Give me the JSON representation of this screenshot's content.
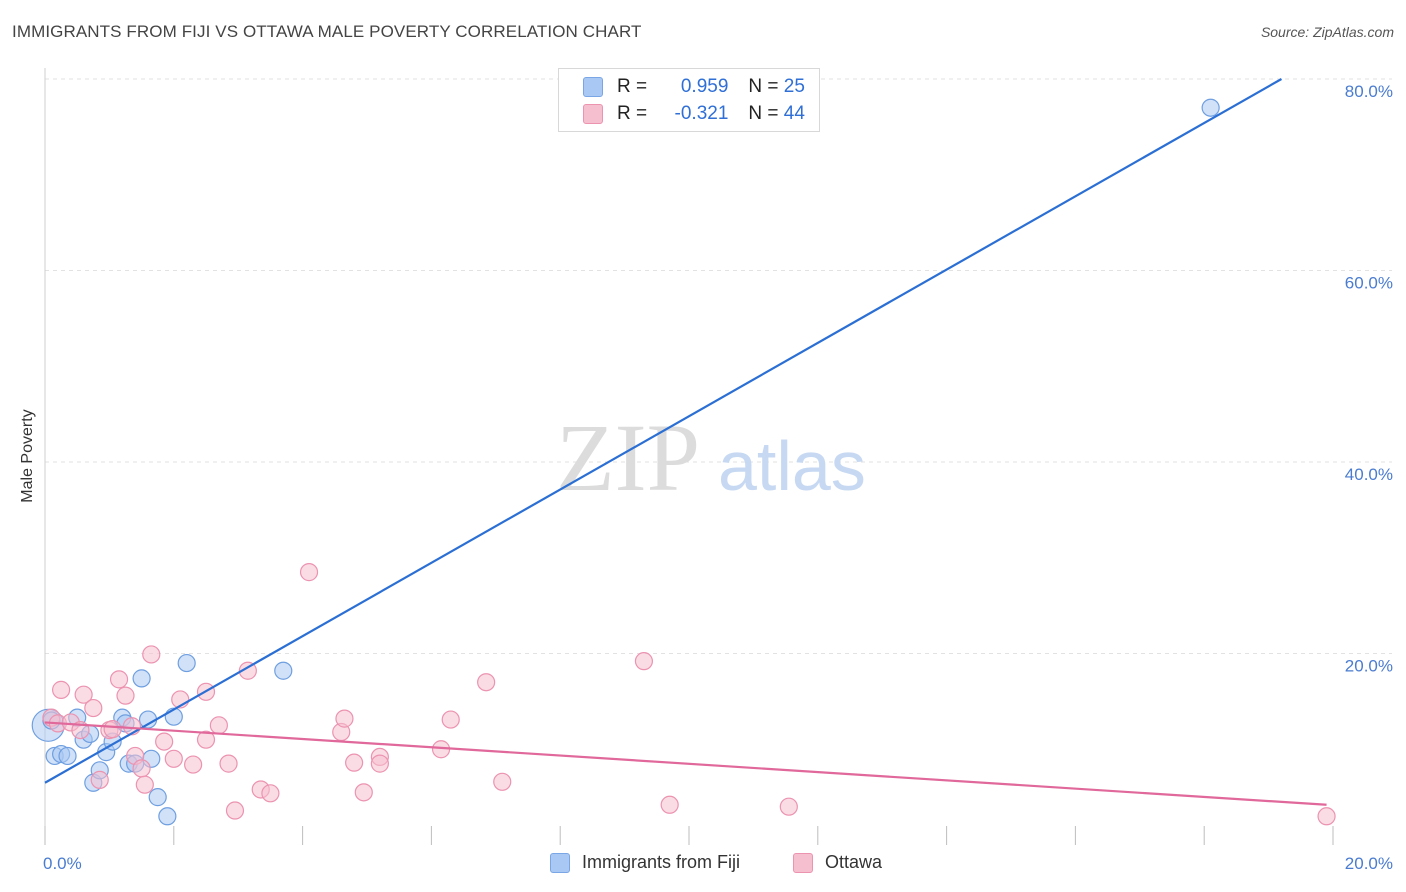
{
  "header": {
    "title": "IMMIGRANTS FROM FIJI VS OTTAWA MALE POVERTY CORRELATION CHART",
    "source": "Source: ZipAtlas.com"
  },
  "watermark": {
    "zip": "ZIP",
    "atlas": "atlas"
  },
  "legend": {
    "rows": [
      {
        "r_label": "R =",
        "r_value": "0.959",
        "n_label": "N =",
        "n_value": "25",
        "color": "#a9c8f3",
        "border": "#7aa6e6"
      },
      {
        "r_label": "R =",
        "r_value": "-0.321",
        "n_label": "N =",
        "n_value": "44",
        "color": "#f6bfd0",
        "border": "#ec93b0"
      }
    ]
  },
  "chart_data": {
    "type": "scatter",
    "title": "IMMIGRANTS FROM FIJI VS OTTAWA MALE POVERTY CORRELATION CHART",
    "xlabel": "",
    "ylabel": "Male Poverty",
    "xlim": [
      0,
      20
    ],
    "ylim": [
      0,
      80
    ],
    "x_tick_labels": [
      "0.0%",
      "20.0%"
    ],
    "y_ticks": [
      20,
      40,
      60,
      80
    ],
    "y_tick_labels": [
      "20.0%",
      "40.0%",
      "60.0%",
      "80.0%"
    ],
    "grid": true,
    "legend_position": "bottom-center",
    "series": [
      {
        "name": "Immigrants from Fiji",
        "color": "#a9c8f3",
        "stroke": "#6f9fe0",
        "line_color": "#2b6fd4",
        "trend": {
          "x0": 0.0,
          "y0": 6.5,
          "x1": 19.2,
          "y1": 80.0
        },
        "points": [
          [
            0.05,
            12.5
          ],
          [
            0.15,
            9.3
          ],
          [
            0.25,
            9.5
          ],
          [
            0.35,
            9.3
          ],
          [
            0.5,
            13.3
          ],
          [
            0.6,
            11.0
          ],
          [
            0.7,
            11.6
          ],
          [
            0.75,
            6.5
          ],
          [
            0.85,
            7.8
          ],
          [
            0.95,
            9.7
          ],
          [
            1.05,
            10.8
          ],
          [
            1.2,
            13.3
          ],
          [
            1.25,
            12.7
          ],
          [
            1.3,
            8.5
          ],
          [
            1.4,
            8.5
          ],
          [
            1.5,
            17.4
          ],
          [
            1.6,
            13.1
          ],
          [
            1.65,
            9.0
          ],
          [
            1.75,
            5.0
          ],
          [
            1.9,
            3.0
          ],
          [
            2.0,
            13.4
          ],
          [
            2.2,
            19.0
          ],
          [
            3.7,
            18.2
          ],
          [
            18.1,
            77.0
          ],
          [
            0.1,
            13.0
          ]
        ]
      },
      {
        "name": "Ottawa",
        "color": "#f6bfd0",
        "stroke": "#ec93b0",
        "line_color": "#e0689a",
        "trend": {
          "x0": 0.0,
          "y0": 12.8,
          "x1": 19.9,
          "y1": 4.2
        },
        "points": [
          [
            0.1,
            13.3
          ],
          [
            0.2,
            12.7
          ],
          [
            0.25,
            16.2
          ],
          [
            0.4,
            12.8
          ],
          [
            0.55,
            12.0
          ],
          [
            0.6,
            15.7
          ],
          [
            0.75,
            14.3
          ],
          [
            0.85,
            6.8
          ],
          [
            1.0,
            12.0
          ],
          [
            1.05,
            12.1
          ],
          [
            1.15,
            17.3
          ],
          [
            1.25,
            15.6
          ],
          [
            1.35,
            12.4
          ],
          [
            1.4,
            9.3
          ],
          [
            1.5,
            8.0
          ],
          [
            1.55,
            6.3
          ],
          [
            1.65,
            19.9
          ],
          [
            1.85,
            10.8
          ],
          [
            2.0,
            9.0
          ],
          [
            2.1,
            15.2
          ],
          [
            2.3,
            8.4
          ],
          [
            2.5,
            16.0
          ],
          [
            2.5,
            11.0
          ],
          [
            2.7,
            12.5
          ],
          [
            2.85,
            8.5
          ],
          [
            2.95,
            3.6
          ],
          [
            3.15,
            18.2
          ],
          [
            3.35,
            5.8
          ],
          [
            3.5,
            5.4
          ],
          [
            4.1,
            28.5
          ],
          [
            4.6,
            11.8
          ],
          [
            4.65,
            13.2
          ],
          [
            4.8,
            8.6
          ],
          [
            4.95,
            5.5
          ],
          [
            5.2,
            9.2
          ],
          [
            5.2,
            8.5
          ],
          [
            6.15,
            10.0
          ],
          [
            6.3,
            13.1
          ],
          [
            6.85,
            17.0
          ],
          [
            7.1,
            6.6
          ],
          [
            9.3,
            19.2
          ],
          [
            9.7,
            4.2
          ],
          [
            11.55,
            4.0
          ],
          [
            19.9,
            3.0
          ]
        ]
      }
    ]
  }
}
